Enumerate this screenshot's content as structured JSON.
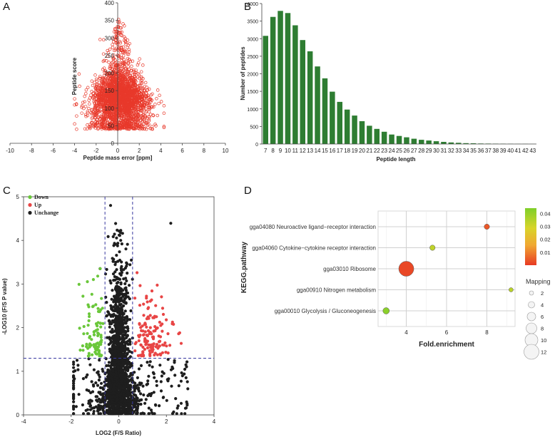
{
  "colors": {
    "scatter_red": "#e8392b",
    "bar_green": "#2e7d32",
    "down": "#6ac73a",
    "up": "#e84545",
    "unchange": "#1e1e1e",
    "dash": "#3a3aa0",
    "grid": "#d0d0d0"
  },
  "panel_letters": [
    "A",
    "B",
    "C",
    "D"
  ],
  "chart_data": [
    {
      "panel": "A",
      "type": "scatter",
      "xlabel": "Peptide mass error [ppm]",
      "ylabel": "Peptide score",
      "xlim": [
        -10,
        10
      ],
      "ylim": [
        0,
        400
      ],
      "xticks": [
        -10,
        -8,
        -6,
        -4,
        -2,
        0,
        2,
        4,
        6,
        8,
        10
      ],
      "yticks": [
        0,
        50,
        100,
        150,
        200,
        250,
        300,
        350,
        400
      ],
      "marker": "open circle",
      "point_cloud": {
        "x_center": 0.2,
        "y_peak": 370,
        "y_floor": 40,
        "x_min": -4,
        "x_max": 4.3
      }
    },
    {
      "panel": "B",
      "type": "bar",
      "xlabel": "Peptide length",
      "ylabel": "Number of peptides",
      "ylim": [
        0,
        4000
      ],
      "yticks": [
        0,
        500,
        1000,
        1500,
        2000,
        2500,
        3000,
        3500,
        4000
      ],
      "categories": [
        "7",
        "8",
        "9",
        "10",
        "11",
        "12",
        "13",
        "14",
        "15",
        "16",
        "17",
        "18",
        "19",
        "20",
        "21",
        "22",
        "23",
        "24",
        "25",
        "26",
        "27",
        "28",
        "29",
        "30",
        "31",
        "32",
        "33",
        "34",
        "35",
        "36",
        "37",
        "38",
        "39",
        "40",
        "41",
        "42",
        "43"
      ],
      "values": [
        3080,
        3620,
        3790,
        3730,
        3380,
        2960,
        2640,
        2210,
        1870,
        1490,
        1200,
        980,
        810,
        650,
        520,
        430,
        350,
        270,
        230,
        190,
        150,
        120,
        100,
        80,
        60,
        45,
        35,
        25,
        20,
        15,
        12,
        10,
        8,
        6,
        5,
        4,
        3
      ]
    },
    {
      "panel": "C",
      "type": "scatter",
      "xlabel": "LOG2 (F/S Ratio)",
      "ylabel": "-LOG10 (F/S P value)",
      "xlim": [
        -4,
        4
      ],
      "ylim": [
        0,
        5
      ],
      "xticks": [
        -4,
        -2,
        0,
        2,
        4
      ],
      "yticks": [
        0,
        1,
        2,
        3,
        4,
        5
      ],
      "thresholds": {
        "x": [
          -0.58,
          0.58
        ],
        "y": 1.3
      },
      "legend": [
        "Down",
        "Up",
        "Unchange"
      ],
      "legend_position": "top-left",
      "point_cloud": {
        "down_count": 90,
        "up_count": 140,
        "unchange_count": 1800
      }
    },
    {
      "panel": "D",
      "type": "scatter",
      "xlabel": "Fold.enrichment",
      "ylabel": "KEGG.pathway",
      "xlim": [
        2.6,
        9.4
      ],
      "xticks": [
        4,
        6,
        8
      ],
      "grid": true,
      "points": [
        {
          "pathway": "gga04080 Neuroactive ligand−receptor interaction",
          "x": 8.0,
          "pvalue": 0.004,
          "mapping": 3
        },
        {
          "pathway": "gga04060 Cytokine−cytokine receptor interaction",
          "x": 5.3,
          "pvalue": 0.033,
          "mapping": 3
        },
        {
          "pathway": "gga03010 Ribosome",
          "x": 4.0,
          "pvalue": 0.002,
          "mapping": 12
        },
        {
          "pathway": "gga00910 Nitrogen metabolism",
          "x": 9.2,
          "pvalue": 0.034,
          "mapping": 2
        },
        {
          "pathway": "gga00010 Glycolysis / Gluconeogenesis",
          "x": 3.0,
          "pvalue": 0.042,
          "mapping": 4
        }
      ],
      "colorbar": {
        "ticks": [
          0.04,
          0.03,
          0.02,
          0.01
        ],
        "range": [
          0.0,
          0.044
        ]
      },
      "size_legend": {
        "title": "Mapping",
        "values": [
          2,
          4,
          6,
          8,
          10,
          12
        ]
      }
    }
  ]
}
